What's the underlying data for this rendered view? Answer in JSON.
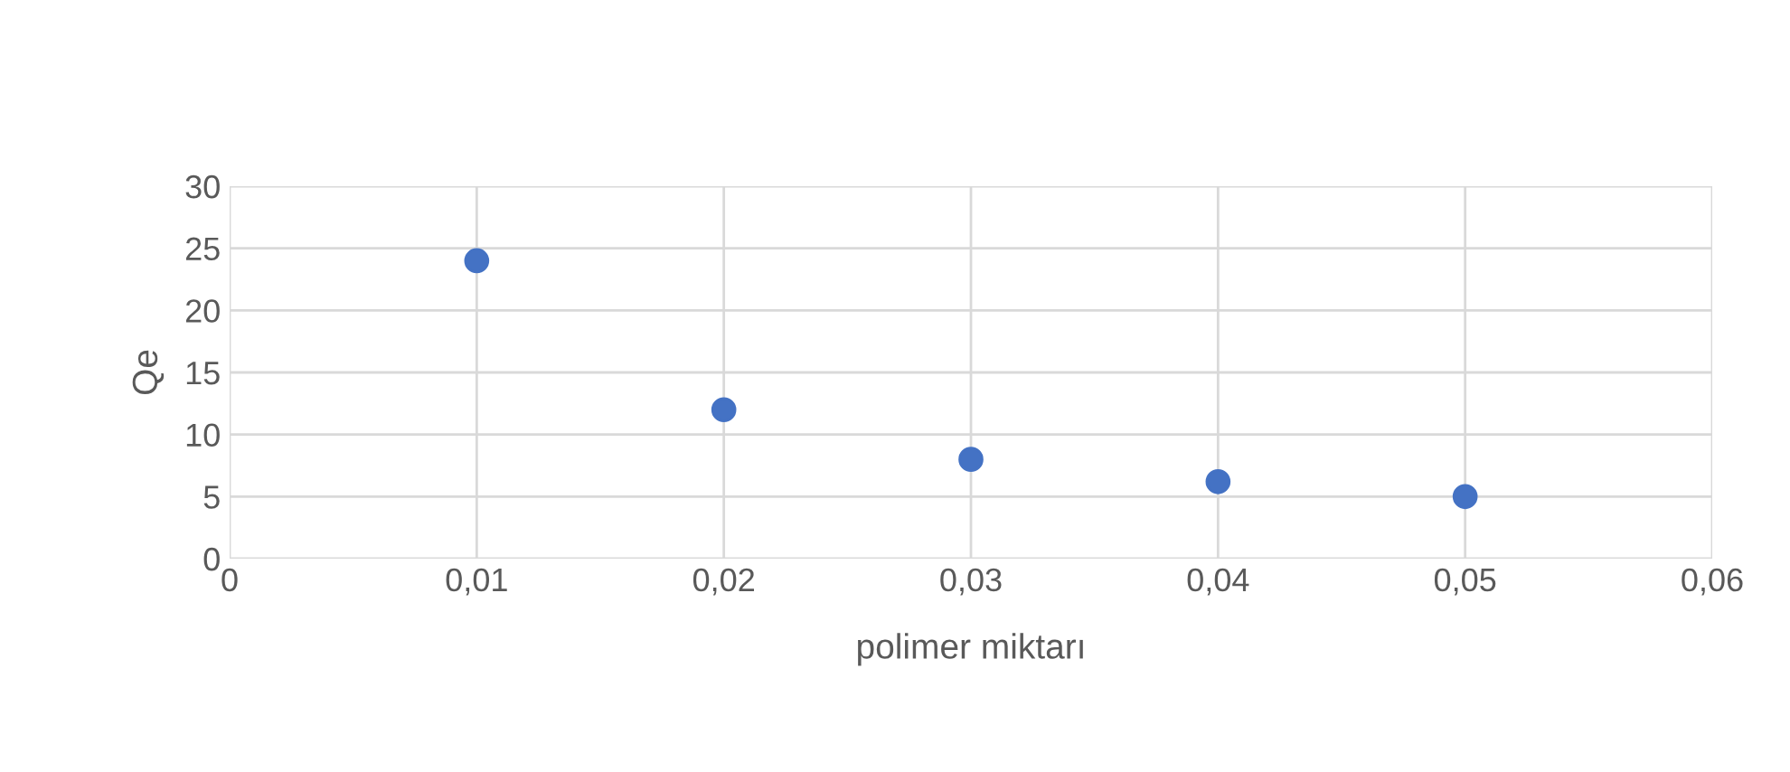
{
  "chart_data": {
    "type": "scatter",
    "xlabel": "polimer miktarı",
    "ylabel": "Qe",
    "x": [
      0.01,
      0.02,
      0.03,
      0.04,
      0.05
    ],
    "series": [
      {
        "color": "#4472c4",
        "values": [
          24,
          12,
          8,
          6.2,
          5
        ]
      }
    ],
    "xlim": [
      0,
      0.06
    ],
    "xticks": [
      0,
      {
        "value": 0.01,
        "label": "0,01"
      },
      {
        "value": 0.02,
        "label": "0,02"
      },
      {
        "value": 0.03,
        "label": "0,03"
      },
      {
        "value": 0.04,
        "label": "0,04"
      },
      {
        "value": 0.05,
        "label": "0,05"
      },
      {
        "value": 0.06,
        "label": "0,06"
      }
    ],
    "ylim": [
      0,
      30
    ],
    "yticks": [
      0,
      5,
      10,
      15,
      20,
      25,
      30
    ],
    "grid": true,
    "marker": "circle",
    "legend": false
  }
}
